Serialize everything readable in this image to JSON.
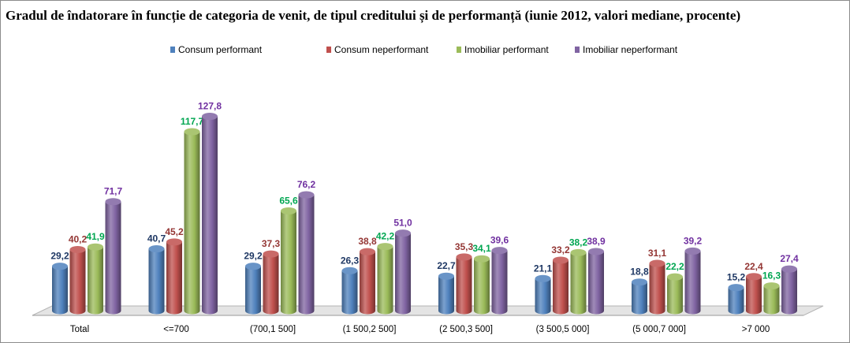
{
  "chart_data": {
    "type": "bar",
    "title": "Gradul de îndatorare în funcție de categoria de venit, de tipul creditului și de performanță (iunie 2012, valori mediane, procente)",
    "categories": [
      "Total",
      "<=700",
      "(700,1 500]",
      "(1 500,2 500]",
      "(2 500,3 500]",
      "(3 500,5 000]",
      "(5 000,7 000]",
      ">7 000"
    ],
    "series": [
      {
        "name": "Consum performant",
        "color": "#4f81bd",
        "labelColor": "#1f3864",
        "values": [
          "29,2",
          "40,7",
          "29,2",
          "26,3",
          "22,7",
          "21,1",
          "18,8",
          "15,2"
        ]
      },
      {
        "name": "Consum neperformant",
        "color": "#c0504d",
        "labelColor": "#943634",
        "values": [
          "40,2",
          "45,2",
          "37,3",
          "38,8",
          "35,3",
          "33,2",
          "31,1",
          "22,4"
        ]
      },
      {
        "name": "Imobiliar performant",
        "color": "#9bbb59",
        "labelColor": "#00a651",
        "values": [
          "41,9",
          "117,7",
          "65,6",
          "42,2",
          "34,1",
          "38,2",
          "22,2",
          "16,3"
        ]
      },
      {
        "name": "Imobiliar neperformant",
        "color": "#8064a2",
        "labelColor": "#7030a0",
        "values": [
          "71,7",
          "127,8",
          "76,2",
          "51,0",
          "39,6",
          "38,9",
          "39,2",
          "27,4"
        ]
      }
    ],
    "ylim": [
      0,
      140
    ],
    "xlabel": "",
    "ylabel": "",
    "legend_position": "top"
  }
}
